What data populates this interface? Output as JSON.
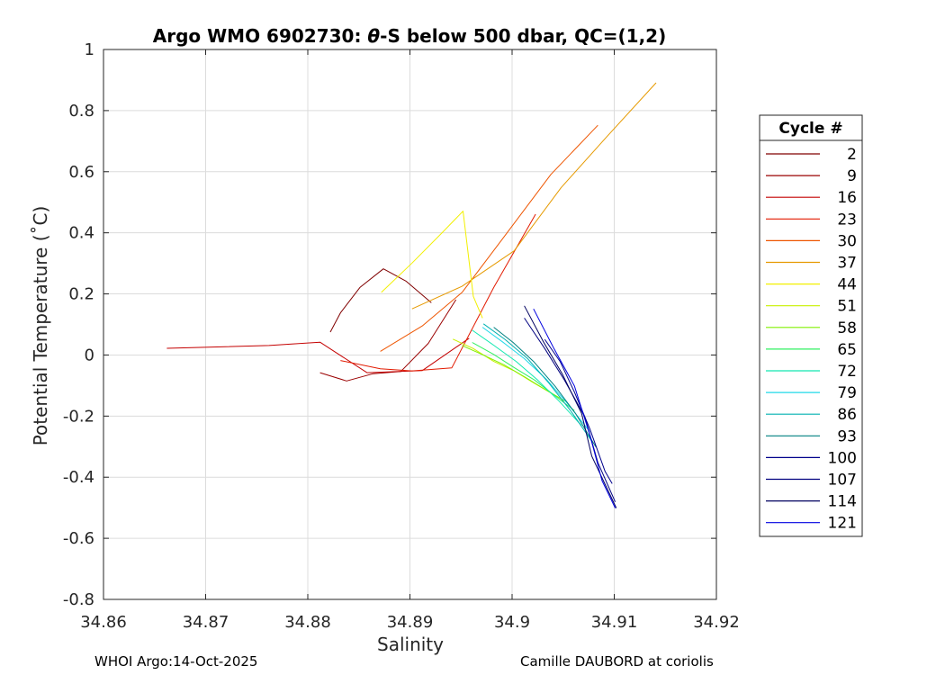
{
  "chart_data": {
    "type": "line",
    "title": "Argo WMO 6902730: θ-S below 500 dbar,  QC=(1,2)",
    "title_parts": {
      "prefix": "Argo WMO 6902730: ",
      "theta": "θ",
      "suffix": "-S below 500 dbar,  QC=(1,2)"
    },
    "xlabel": "Salinity",
    "ylabel": "Potential Temperature (˚C)",
    "xlim": [
      34.86,
      34.92
    ],
    "ylim": [
      -0.8,
      1.0
    ],
    "xticks": [
      34.86,
      34.87,
      34.88,
      34.89,
      34.9,
      34.91,
      34.92
    ],
    "xtick_labels": [
      "34.86",
      "34.87",
      "34.88",
      "34.89",
      "34.9",
      "34.91",
      "34.92"
    ],
    "yticks": [
      -0.8,
      -0.6,
      -0.4,
      -0.2,
      0,
      0.2,
      0.4,
      0.6,
      0.8,
      1
    ],
    "ytick_labels": [
      "-0.8",
      "-0.6",
      "-0.4",
      "-0.2",
      "0",
      "0.2",
      "0.4",
      "0.6",
      "0.8",
      "1"
    ],
    "grid": true,
    "legend_title": "Cycle #",
    "legend_position": "outside-right",
    "series": [
      {
        "name": "2",
        "color": "#800000",
        "x": [
          34.8822,
          34.8832,
          34.8851,
          34.8874,
          34.8896,
          34.8921
        ],
        "y": [
          0.075,
          0.138,
          0.221,
          0.282,
          0.242,
          0.171
        ]
      },
      {
        "name": "9",
        "color": "#9a0000",
        "x": [
          34.8812,
          34.8838,
          34.8864,
          34.8891,
          34.8918,
          34.8945
        ],
        "y": [
          -0.058,
          -0.085,
          -0.061,
          -0.054,
          0.038,
          0.181
        ]
      },
      {
        "name": "16",
        "color": "#c40000",
        "x": [
          34.8662,
          34.8762,
          34.8812,
          34.8858,
          34.8912,
          34.8958
        ],
        "y": [
          0.022,
          0.031,
          0.042,
          -0.058,
          -0.051,
          0.055
        ]
      },
      {
        "name": "23",
        "color": "#e21a00",
        "x": [
          34.8832,
          34.8871,
          34.8902,
          34.8941,
          34.8982,
          34.9023
        ],
        "y": [
          -0.018,
          -0.045,
          -0.052,
          -0.042,
          0.221,
          0.461
        ]
      },
      {
        "name": "30",
        "color": "#ee5500",
        "x": [
          34.8871,
          34.8912,
          34.8951,
          34.8991,
          34.9038,
          34.9084
        ],
        "y": [
          0.012,
          0.095,
          0.205,
          0.382,
          0.591,
          0.752
        ]
      },
      {
        "name": "37",
        "color": "#e69a00",
        "x": [
          34.8902,
          34.8951,
          34.9002,
          34.9048,
          34.9092,
          34.9141
        ],
        "y": [
          0.151,
          0.225,
          0.341,
          0.548,
          0.712,
          0.891
        ]
      },
      {
        "name": "44",
        "color": "#f2f000",
        "x": [
          34.8872,
          34.8902,
          34.8932,
          34.8952,
          34.8962,
          34.8971
        ],
        "y": [
          0.205,
          0.301,
          0.402,
          0.471,
          0.192,
          0.121
        ]
      },
      {
        "name": "51",
        "color": "#c8f000",
        "x": [
          34.8942,
          34.8962,
          34.8982,
          34.9002,
          34.9021,
          34.9042
        ],
        "y": [
          0.052,
          0.021,
          -0.021,
          -0.052,
          -0.091,
          -0.132
        ]
      },
      {
        "name": "58",
        "color": "#80f000",
        "x": [
          34.8951,
          34.8971,
          34.8992,
          34.9012,
          34.9032,
          34.9052
        ],
        "y": [
          0.031,
          0.001,
          -0.032,
          -0.071,
          -0.112,
          -0.151
        ]
      },
      {
        "name": "65",
        "color": "#30f060",
        "x": [
          34.8961,
          34.8982,
          34.9002,
          34.9022,
          34.9041,
          34.9061
        ],
        "y": [
          0.041,
          0.002,
          -0.041,
          -0.082,
          -0.131,
          -0.182
        ]
      },
      {
        "name": "72",
        "color": "#10e8b0",
        "x": [
          34.8961,
          34.8982,
          34.9004,
          34.9025,
          34.9046,
          34.9068
        ],
        "y": [
          0.081,
          0.032,
          -0.021,
          -0.082,
          -0.151,
          -0.231
        ]
      },
      {
        "name": "79",
        "color": "#20d8e8",
        "x": [
          34.8971,
          34.8991,
          34.9012,
          34.9034,
          34.9055,
          34.9076
        ],
        "y": [
          0.091,
          0.042,
          -0.012,
          -0.081,
          -0.162,
          -0.251
        ]
      },
      {
        "name": "86",
        "color": "#00b0b0",
        "x": [
          34.8972,
          34.8993,
          34.9015,
          34.9036,
          34.9057,
          34.9078
        ],
        "y": [
          0.102,
          0.051,
          -0.011,
          -0.092,
          -0.181,
          -0.282
        ]
      },
      {
        "name": "93",
        "color": "#008080",
        "x": [
          34.8982,
          34.9001,
          34.9021,
          34.9042,
          34.9062,
          34.9082
        ],
        "y": [
          0.091,
          0.041,
          -0.021,
          -0.102,
          -0.191,
          -0.301
        ]
      },
      {
        "name": "100",
        "color": "#00008b",
        "x": [
          34.9032,
          34.9047,
          34.9061,
          34.9076,
          34.9091,
          34.9098
        ],
        "y": [
          0.051,
          -0.021,
          -0.121,
          -0.241,
          -0.381,
          -0.421
        ]
      },
      {
        "name": "107",
        "color": "#000080",
        "x": [
          34.9012,
          34.9032,
          34.9051,
          34.9071,
          34.9084,
          34.9101
        ],
        "y": [
          0.121,
          0.021,
          -0.081,
          -0.201,
          -0.352,
          -0.481
        ]
      },
      {
        "name": "114",
        "color": "#000060",
        "x": [
          34.9012,
          34.9031,
          34.9049,
          34.9068,
          34.9078,
          34.9102
        ],
        "y": [
          0.161,
          0.041,
          -0.061,
          -0.191,
          -0.331,
          -0.501
        ]
      },
      {
        "name": "121",
        "color": "#0000e0",
        "x": [
          34.9021,
          34.9041,
          34.9061,
          34.9076,
          34.9088,
          34.9101
        ],
        "y": [
          0.151,
          0.021,
          -0.101,
          -0.261,
          -0.411,
          -0.501
        ]
      }
    ]
  },
  "footer": {
    "left": "WHOI Argo:14-Oct-2025",
    "right": "Camille DAUBORD at coriolis"
  }
}
